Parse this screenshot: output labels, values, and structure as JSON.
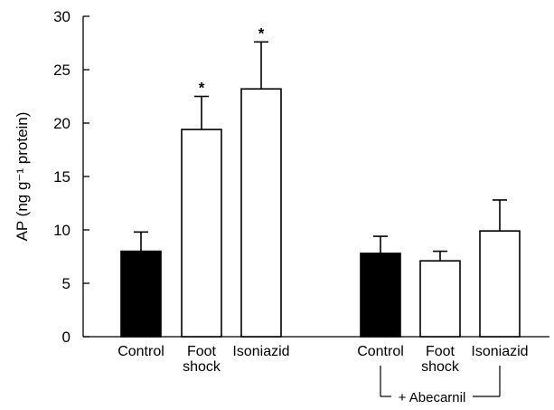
{
  "chart_data": {
    "type": "bar",
    "title": "",
    "ylabel": "AP (ng g⁻¹ protein)",
    "xlabel": "",
    "ylim": [
      0,
      30
    ],
    "yticks": [
      "0",
      "5",
      "10",
      "15",
      "20",
      "25",
      "30"
    ],
    "categories": [
      {
        "label": "Control",
        "value": 8.0,
        "error": 1.8,
        "fill": "black",
        "significant": false,
        "group": "left"
      },
      {
        "label": "Foot shock",
        "value": 19.4,
        "error": 3.1,
        "fill": "white",
        "significant": true,
        "group": "left"
      },
      {
        "label": "Isoniazid",
        "value": 23.2,
        "error": 4.4,
        "fill": "white",
        "significant": true,
        "group": "left"
      },
      {
        "label": "Control",
        "value": 7.8,
        "error": 1.6,
        "fill": "black",
        "significant": false,
        "group": "right"
      },
      {
        "label": "Foot shock",
        "value": 7.1,
        "error": 0.9,
        "fill": "white",
        "significant": false,
        "group": "right"
      },
      {
        "label": "Isoniazid",
        "value": 9.9,
        "error": 2.9,
        "fill": "white",
        "significant": false,
        "group": "right"
      }
    ],
    "group_annotation": "+ Abecarnil",
    "significance_marker": "*",
    "colors": {
      "black_bar": "#000000",
      "white_bar": "#ffffff",
      "axis": "#000000"
    }
  }
}
